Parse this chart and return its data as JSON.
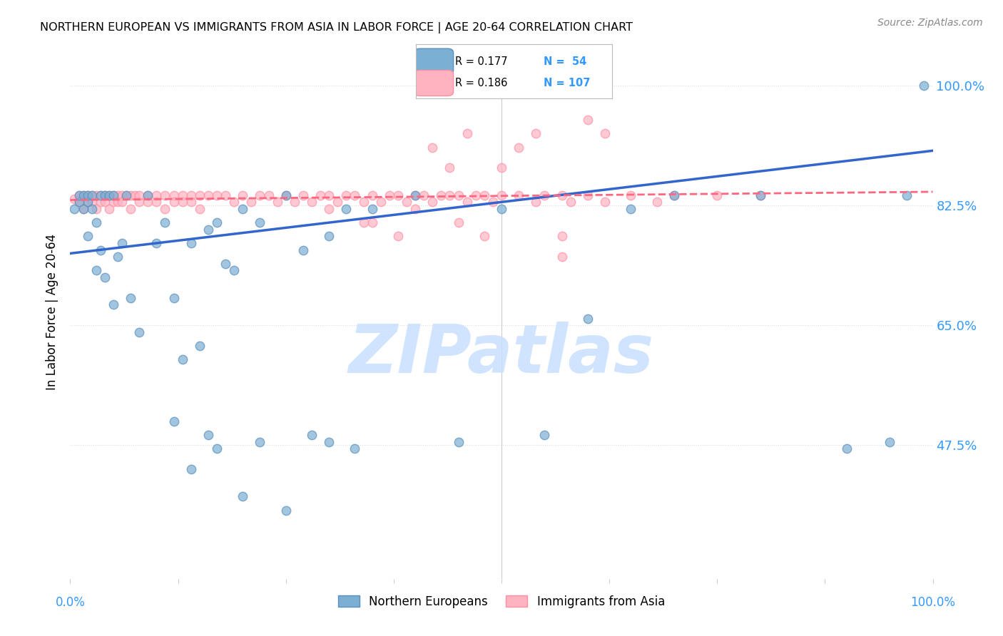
{
  "title": "NORTHERN EUROPEAN VS IMMIGRANTS FROM ASIA IN LABOR FORCE | AGE 20-64 CORRELATION CHART",
  "source": "Source: ZipAtlas.com",
  "ylabel": "In Labor Force | Age 20-64",
  "R_blue": 0.177,
  "N_blue": 54,
  "R_pink": 0.186,
  "N_pink": 107,
  "legend_labels": [
    "Northern Europeans",
    "Immigrants from Asia"
  ],
  "blue_scatter_color": "#7BAFD4",
  "blue_edge_color": "#5B8FBC",
  "pink_scatter_color": "#FFB3C1",
  "pink_edge_color": "#FF8FA3",
  "blue_line_color": "#3366CC",
  "pink_line_color": "#FF6680",
  "axis_color": "#3399FF",
  "background_color": "#FFFFFF",
  "grid_color": "#DDDDDD",
  "ytick_vals": [
    1.0,
    0.825,
    0.65,
    0.475
  ],
  "ytick_labels": [
    "100.0%",
    "82.5%",
    "65.0%",
    "47.5%"
  ],
  "xlim": [
    0,
    1
  ],
  "ylim": [
    0.28,
    1.06
  ],
  "blue_x": [
    0.005,
    0.01,
    0.01,
    0.015,
    0.015,
    0.02,
    0.02,
    0.02,
    0.025,
    0.025,
    0.03,
    0.03,
    0.035,
    0.035,
    0.04,
    0.04,
    0.045,
    0.05,
    0.05,
    0.055,
    0.06,
    0.065,
    0.07,
    0.08,
    0.09,
    0.1,
    0.11,
    0.12,
    0.13,
    0.14,
    0.15,
    0.16,
    0.17,
    0.18,
    0.19,
    0.2,
    0.22,
    0.25,
    0.27,
    0.3,
    0.32,
    0.35,
    0.4,
    0.45,
    0.5,
    0.55,
    0.6,
    0.65,
    0.7,
    0.8,
    0.9,
    0.95,
    0.97,
    0.99
  ],
  "blue_y": [
    0.82,
    0.83,
    0.84,
    0.82,
    0.84,
    0.83,
    0.84,
    0.78,
    0.84,
    0.82,
    0.73,
    0.8,
    0.76,
    0.84,
    0.84,
    0.72,
    0.84,
    0.68,
    0.84,
    0.75,
    0.77,
    0.84,
    0.69,
    0.64,
    0.84,
    0.77,
    0.8,
    0.69,
    0.6,
    0.77,
    0.62,
    0.79,
    0.8,
    0.74,
    0.73,
    0.82,
    0.8,
    0.84,
    0.76,
    0.78,
    0.82,
    0.82,
    0.84,
    0.48,
    0.82,
    0.49,
    0.66,
    0.82,
    0.84,
    0.84,
    0.47,
    0.48,
    0.84,
    1.0
  ],
  "blue_low_x": [
    0.12,
    0.14,
    0.16,
    0.17,
    0.2,
    0.22,
    0.25,
    0.28,
    0.3,
    0.33
  ],
  "blue_low_y": [
    0.51,
    0.44,
    0.49,
    0.47,
    0.4,
    0.48,
    0.38,
    0.49,
    0.48,
    0.47
  ],
  "pink_x": [
    0.005,
    0.01,
    0.01,
    0.015,
    0.015,
    0.02,
    0.02,
    0.025,
    0.025,
    0.03,
    0.03,
    0.035,
    0.035,
    0.04,
    0.04,
    0.045,
    0.045,
    0.05,
    0.05,
    0.055,
    0.055,
    0.06,
    0.06,
    0.065,
    0.07,
    0.07,
    0.075,
    0.08,
    0.08,
    0.09,
    0.09,
    0.1,
    0.1,
    0.11,
    0.11,
    0.12,
    0.12,
    0.13,
    0.13,
    0.14,
    0.14,
    0.15,
    0.15,
    0.16,
    0.17,
    0.18,
    0.19,
    0.2,
    0.21,
    0.22,
    0.23,
    0.24,
    0.25,
    0.26,
    0.27,
    0.28,
    0.29,
    0.3,
    0.31,
    0.32,
    0.33,
    0.34,
    0.35,
    0.36,
    0.37,
    0.38,
    0.39,
    0.4,
    0.41,
    0.42,
    0.43,
    0.44,
    0.45,
    0.46,
    0.47,
    0.48,
    0.49,
    0.5,
    0.52,
    0.54,
    0.55,
    0.57,
    0.58,
    0.6,
    0.62,
    0.65,
    0.68,
    0.7,
    0.75,
    0.8,
    0.42,
    0.44,
    0.46,
    0.5,
    0.52,
    0.54,
    0.6,
    0.62,
    0.57,
    0.35,
    0.38,
    0.45,
    0.48,
    0.3,
    0.34,
    0.4,
    0.57
  ],
  "pink_y": [
    0.835,
    0.84,
    0.83,
    0.84,
    0.82,
    0.84,
    0.83,
    0.84,
    0.83,
    0.84,
    0.82,
    0.84,
    0.83,
    0.84,
    0.83,
    0.84,
    0.82,
    0.84,
    0.83,
    0.84,
    0.83,
    0.84,
    0.83,
    0.84,
    0.84,
    0.82,
    0.84,
    0.83,
    0.84,
    0.84,
    0.83,
    0.84,
    0.83,
    0.84,
    0.82,
    0.84,
    0.83,
    0.84,
    0.83,
    0.84,
    0.83,
    0.84,
    0.82,
    0.84,
    0.84,
    0.84,
    0.83,
    0.84,
    0.83,
    0.84,
    0.84,
    0.83,
    0.84,
    0.83,
    0.84,
    0.83,
    0.84,
    0.84,
    0.83,
    0.84,
    0.84,
    0.83,
    0.84,
    0.83,
    0.84,
    0.84,
    0.83,
    0.84,
    0.84,
    0.83,
    0.84,
    0.84,
    0.84,
    0.83,
    0.84,
    0.84,
    0.83,
    0.84,
    0.84,
    0.83,
    0.84,
    0.84,
    0.83,
    0.84,
    0.83,
    0.84,
    0.83,
    0.84,
    0.84,
    0.84,
    0.91,
    0.88,
    0.93,
    0.88,
    0.91,
    0.93,
    0.95,
    0.93,
    0.78,
    0.8,
    0.78,
    0.8,
    0.78,
    0.82,
    0.8,
    0.82,
    0.75
  ],
  "watermark_text": "ZIPatlas",
  "watermark_color": "#C8DEFF",
  "scatter_size": 80,
  "scatter_alpha": 0.7
}
